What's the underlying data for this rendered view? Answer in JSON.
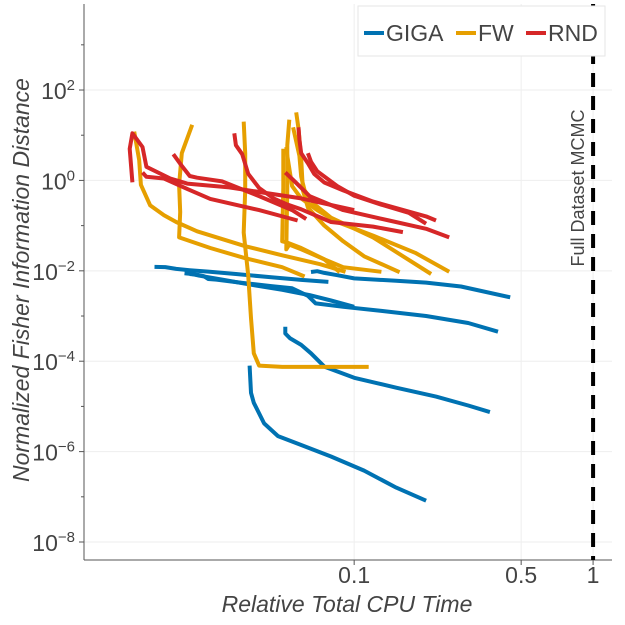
{
  "chart_data": {
    "type": "line",
    "xlabel": "Relative Total CPU Time",
    "ylabel": "Normalized Fisher Information Distance",
    "x_scale": "log",
    "y_scale": "log",
    "xlim": [
      0.0074,
      1.2
    ],
    "ylim": [
      4e-09,
      8000
    ],
    "x_ticks": [
      {
        "value": 0.1,
        "label": "0.1"
      },
      {
        "value": 0.5,
        "label": "0.5"
      },
      {
        "value": 1,
        "label": "1"
      }
    ],
    "y_ticks": [
      {
        "value": 1e-08,
        "base": "10",
        "exp": "−8"
      },
      {
        "value": 1e-06,
        "base": "10",
        "exp": "−6"
      },
      {
        "value": 0.0001,
        "base": "10",
        "exp": "−4"
      },
      {
        "value": 0.01,
        "base": "10",
        "exp": "−2"
      },
      {
        "value": 1,
        "base": "10",
        "exp": "0"
      },
      {
        "value": 100,
        "base": "10",
        "exp": "2"
      }
    ],
    "grid": true,
    "legend_position": "top-right",
    "legend": [
      {
        "name": "GIGA",
        "color": "#0072b2"
      },
      {
        "name": "FW",
        "color": "#e69f00"
      },
      {
        "name": "RND",
        "color": "#d62728"
      }
    ],
    "vline": {
      "x": 1,
      "label": "Full Dataset MCMC",
      "style": "dashed",
      "color": "#000000"
    },
    "series": [
      {
        "name": "GIGA",
        "color": "#0072b2",
        "points": [
          [
            0.0146,
            0.0122
          ],
          [
            0.0162,
            0.0121
          ],
          [
            0.018,
            0.011
          ],
          [
            0.0205,
            0.0103
          ],
          [
            0.0245,
            0.0096
          ],
          [
            0.032,
            0.0085
          ],
          [
            0.045,
            0.0072
          ],
          [
            0.06,
            0.0063
          ],
          [
            0.078,
            0.0057
          ]
        ]
      },
      {
        "name": "GIGA",
        "color": "#0072b2",
        "points": [
          [
            0.0195,
            0.0088
          ],
          [
            0.021,
            0.0085
          ],
          [
            0.0225,
            0.0078
          ],
          [
            0.028,
            0.0064
          ],
          [
            0.038,
            0.0048
          ],
          [
            0.05,
            0.0038
          ],
          [
            0.065,
            0.0029
          ],
          [
            0.08,
            0.0022
          ],
          [
            0.1,
            0.0016
          ]
        ]
      },
      {
        "name": "GIGA",
        "color": "#0072b2",
        "points": [
          [
            0.0205,
            0.0085
          ],
          [
            0.022,
            0.0082
          ],
          [
            0.0235,
            0.0076
          ],
          [
            0.0245,
            0.0066
          ],
          [
            0.0265,
            0.0064
          ],
          [
            0.034,
            0.0054
          ],
          [
            0.045,
            0.0046
          ],
          [
            0.055,
            0.0041
          ],
          [
            0.064,
            0.0028
          ],
          [
            0.069,
            0.0019
          ],
          [
            0.09,
            0.0016
          ],
          [
            0.13,
            0.0013
          ],
          [
            0.2,
            0.001
          ],
          [
            0.3,
            0.0007
          ],
          [
            0.4,
            0.00045
          ]
        ]
      },
      {
        "name": "GIGA",
        "color": "#0072b2",
        "points": [
          [
            0.066,
            0.0094
          ],
          [
            0.07,
            0.0098
          ],
          [
            0.075,
            0.009
          ],
          [
            0.085,
            0.008
          ],
          [
            0.1,
            0.0068
          ],
          [
            0.15,
            0.006
          ],
          [
            0.2,
            0.0055
          ],
          [
            0.28,
            0.0045
          ],
          [
            0.45,
            0.0026
          ]
        ]
      },
      {
        "name": "GIGA",
        "color": "#0072b2",
        "points": [
          [
            0.0365,
            8e-05
          ],
          [
            0.037,
            2e-05
          ],
          [
            0.038,
            1.2e-05
          ],
          [
            0.042,
            4.2e-06
          ],
          [
            0.048,
            2.2e-06
          ],
          [
            0.06,
            1.4e-06
          ],
          [
            0.08,
            7.8e-07
          ],
          [
            0.11,
            3.8e-07
          ],
          [
            0.15,
            1.6e-07
          ],
          [
            0.2,
            8.2e-08
          ]
        ]
      },
      {
        "name": "GIGA",
        "color": "#0072b2",
        "points": [
          [
            0.0515,
            0.00058
          ],
          [
            0.0515,
            0.00041
          ],
          [
            0.054,
            0.00032
          ],
          [
            0.06,
            0.00023
          ],
          [
            0.066,
            0.00015
          ],
          [
            0.075,
            7.6e-05
          ],
          [
            0.1,
            4.3e-05
          ],
          [
            0.15,
            2.6e-05
          ],
          [
            0.22,
            1.65e-05
          ],
          [
            0.3,
            1.05e-05
          ],
          [
            0.37,
            7.5e-06
          ]
        ]
      },
      {
        "name": "FW",
        "color": "#e69f00",
        "points": [
          [
            0.012,
            12
          ],
          [
            0.0126,
            2.8
          ],
          [
            0.0128,
            0.8
          ],
          [
            0.014,
            0.28
          ],
          [
            0.016,
            0.17
          ],
          [
            0.018,
            0.12
          ],
          [
            0.022,
            0.075
          ],
          [
            0.035,
            0.035
          ],
          [
            0.05,
            0.022
          ],
          [
            0.072,
            0.014
          ],
          [
            0.092,
            0.0095
          ]
        ]
      },
      {
        "name": "FW",
        "color": "#e69f00",
        "points": [
          [
            0.021,
            17
          ],
          [
            0.019,
            4
          ],
          [
            0.0185,
            0.8
          ],
          [
            0.0187,
            0.2
          ],
          [
            0.0185,
            0.055
          ],
          [
            0.025,
            0.032
          ],
          [
            0.035,
            0.019
          ],
          [
            0.05,
            0.012
          ],
          [
            0.062,
            0.0075
          ]
        ]
      },
      {
        "name": "FW",
        "color": "#e69f00",
        "points": [
          [
            0.0345,
            20
          ],
          [
            0.035,
            4
          ],
          [
            0.035,
            0.6
          ],
          [
            0.0345,
            0.07
          ],
          [
            0.036,
            0.008
          ],
          [
            0.037,
            0.0009
          ],
          [
            0.038,
            0.00015
          ],
          [
            0.04,
            8e-05
          ],
          [
            0.05,
            7.5e-05
          ],
          [
            0.08,
            7.5e-05
          ],
          [
            0.115,
            7.5e-05
          ]
        ]
      },
      {
        "name": "FW",
        "color": "#e69f00",
        "points": [
          [
            0.0572,
            32
          ],
          [
            0.0585,
            14
          ],
          [
            0.06,
            3
          ],
          [
            0.061,
            0.6
          ],
          [
            0.064,
            0.25
          ],
          [
            0.075,
            0.1
          ],
          [
            0.09,
            0.045
          ],
          [
            0.11,
            0.021
          ],
          [
            0.155,
            0.0093
          ]
        ]
      },
      {
        "name": "FW",
        "color": "#e69f00",
        "points": [
          [
            0.0535,
            22
          ],
          [
            0.0525,
            6
          ],
          [
            0.0525,
            0.7
          ],
          [
            0.052,
            0.03
          ],
          [
            0.0535,
            0.038
          ],
          [
            0.06,
            0.03
          ],
          [
            0.075,
            0.018
          ],
          [
            0.087,
            0.0093
          ]
        ]
      },
      {
        "name": "FW",
        "color": "#e69f00",
        "points": [
          [
            0.0505,
            5
          ],
          [
            0.0505,
            0.7
          ],
          [
            0.05,
            0.045
          ],
          [
            0.0525,
            0.042
          ],
          [
            0.06,
            0.032
          ],
          [
            0.075,
            0.018
          ],
          [
            0.09,
            0.012
          ],
          [
            0.13,
            0.0095
          ]
        ]
      },
      {
        "name": "FW",
        "color": "#e69f00",
        "points": [
          [
            0.052,
            5.5
          ],
          [
            0.0525,
            3.5
          ],
          [
            0.055,
            0.75
          ],
          [
            0.06,
            0.4
          ],
          [
            0.07,
            0.22
          ],
          [
            0.085,
            0.12
          ],
          [
            0.12,
            0.06
          ],
          [
            0.18,
            0.025
          ],
          [
            0.25,
            0.0095
          ]
        ]
      },
      {
        "name": "FW",
        "color": "#e69f00",
        "points": [
          [
            0.0555,
            15
          ],
          [
            0.057,
            8
          ],
          [
            0.059,
            3.5
          ],
          [
            0.06,
            1.2
          ],
          [
            0.062,
            0.6
          ],
          [
            0.068,
            0.3
          ],
          [
            0.08,
            0.15
          ],
          [
            0.12,
            0.055
          ],
          [
            0.21,
            0.0085
          ]
        ]
      },
      {
        "name": "RND",
        "color": "#d62728",
        "points": [
          [
            0.0118,
            0.91
          ],
          [
            0.0115,
            5
          ],
          [
            0.0118,
            11
          ],
          [
            0.013,
            5.5
          ],
          [
            0.0135,
            2
          ],
          [
            0.017,
            1.1
          ],
          [
            0.02,
            0.85
          ],
          [
            0.03,
            0.7
          ],
          [
            0.06,
            0.4
          ],
          [
            0.1,
            0.22
          ]
        ]
      },
      {
        "name": "RND",
        "color": "#d62728",
        "points": [
          [
            0.013,
            1.5
          ],
          [
            0.0135,
            1.2
          ],
          [
            0.016,
            1.1
          ],
          [
            0.02,
            0.65
          ],
          [
            0.025,
            0.39
          ],
          [
            0.04,
            0.22
          ],
          [
            0.058,
            0.13
          ]
        ]
      },
      {
        "name": "RND",
        "color": "#d62728",
        "points": [
          [
            0.0175,
            3.8
          ],
          [
            0.019,
            2.1
          ],
          [
            0.0205,
            1.25
          ],
          [
            0.022,
            1.15
          ],
          [
            0.028,
            0.95
          ],
          [
            0.04,
            0.45
          ],
          [
            0.055,
            0.22
          ],
          [
            0.063,
            0.14
          ]
        ]
      },
      {
        "name": "RND",
        "color": "#d62728",
        "points": [
          [
            0.0315,
            11
          ],
          [
            0.032,
            6
          ],
          [
            0.034,
            3.8
          ],
          [
            0.036,
            1.4
          ],
          [
            0.04,
            0.68
          ],
          [
            0.046,
            0.4
          ],
          [
            0.052,
            0.3
          ],
          [
            0.06,
            0.23
          ],
          [
            0.08,
            0.12
          ],
          [
            0.12,
            0.095
          ],
          [
            0.16,
            0.072
          ]
        ]
      },
      {
        "name": "RND",
        "color": "#d62728",
        "points": [
          [
            0.0585,
            15
          ],
          [
            0.059,
            8
          ],
          [
            0.06,
            4
          ],
          [
            0.064,
            2.4
          ],
          [
            0.068,
            1.4
          ],
          [
            0.075,
            0.9
          ],
          [
            0.09,
            0.6
          ],
          [
            0.12,
            0.34
          ],
          [
            0.2,
            0.16
          ],
          [
            0.22,
            0.13
          ]
        ]
      },
      {
        "name": "RND",
        "color": "#d62728",
        "points": [
          [
            0.064,
            4
          ],
          [
            0.066,
            2.6
          ],
          [
            0.07,
            1.6
          ],
          [
            0.085,
            0.75
          ],
          [
            0.1,
            0.46
          ],
          [
            0.13,
            0.29
          ],
          [
            0.17,
            0.19
          ],
          [
            0.2,
            0.11
          ]
        ]
      },
      {
        "name": "RND",
        "color": "#d62728",
        "points": [
          [
            0.0515,
            1.5
          ],
          [
            0.057,
            0.9
          ],
          [
            0.065,
            0.45
          ],
          [
            0.09,
            0.22
          ],
          [
            0.14,
            0.13
          ],
          [
            0.2,
            0.085
          ],
          [
            0.25,
            0.055
          ]
        ]
      }
    ]
  }
}
